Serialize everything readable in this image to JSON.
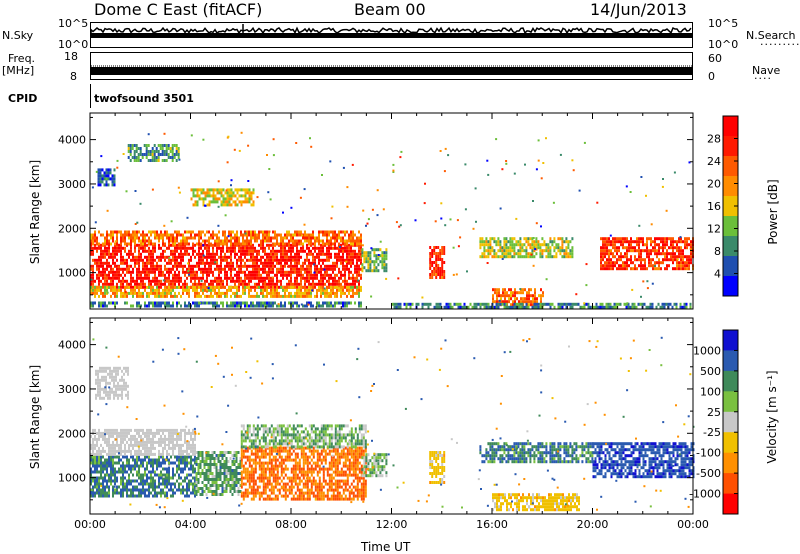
{
  "header": {
    "station": "Dome C East (fitACF)",
    "beam": "Beam 00",
    "date": "14/Jun/2013"
  },
  "strip_panels": {
    "nsky_label": "N.Sky",
    "nsky_ticks": [
      "10^5",
      "10^0"
    ],
    "nsearch_label": "N.Search",
    "nsearch_ticks": [
      "10^5",
      "10^0"
    ],
    "freq_label": "Freq.",
    "freq_unit": "[MHz]",
    "freq_ticks": [
      "18",
      "8"
    ],
    "nave_label": "Nave",
    "nave_ticks": [
      "60",
      "0"
    ],
    "cpid_label": "CPID",
    "cpid_value": "twofsound 3501"
  },
  "colors": {
    "power_scale": [
      "#0000ff",
      "#1f4fb0",
      "#3a8a6a",
      "#6bbf3a",
      "#f0c000",
      "#ff8c00",
      "#ff5a00",
      "#ff1a00",
      "#ff0000"
    ],
    "velocity_scale": [
      "#1010d0",
      "#2a5ab0",
      "#3f8a5a",
      "#7ac040",
      "#c8c8c8",
      "#f0c000",
      "#ff9000",
      "#ff5000",
      "#ff0000"
    ]
  },
  "chart_data": [
    {
      "type": "heatmap",
      "name": "power",
      "xlabel": "Time UT",
      "ylabel": "Slant Range [km]",
      "xlim": [
        0,
        24
      ],
      "ylim": [
        180,
        4600
      ],
      "x_ticks": [
        "00:00",
        "04:00",
        "08:00",
        "12:00",
        "16:00",
        "20:00",
        "00:00"
      ],
      "y_ticks": [
        "1000",
        "2000",
        "3000",
        "4000"
      ],
      "colorbar_label": "Power [dB]",
      "colorbar_ticks": [
        "4",
        "8",
        "12",
        "16",
        "20",
        "24",
        "28"
      ],
      "regions": [
        {
          "t0": 0.0,
          "t1": 10.8,
          "r0": 700,
          "r1": 1650,
          "level": 28
        },
        {
          "t0": 0.0,
          "t1": 10.8,
          "r0": 1650,
          "r1": 1950,
          "level": 22
        },
        {
          "t0": 0.0,
          "t1": 10.8,
          "r0": 450,
          "r1": 700,
          "level": 18
        },
        {
          "t0": 0.0,
          "t1": 10.8,
          "r0": 250,
          "r1": 350,
          "level": 8
        },
        {
          "t0": 0.3,
          "t1": 1.0,
          "r0": 2950,
          "r1": 3350,
          "level": 6
        },
        {
          "t0": 1.5,
          "t1": 3.5,
          "r0": 3500,
          "r1": 3900,
          "level": 10
        },
        {
          "t0": 4.0,
          "t1": 6.5,
          "r0": 2500,
          "r1": 2900,
          "level": 16
        },
        {
          "t0": 10.8,
          "t1": 11.8,
          "r0": 1050,
          "r1": 1550,
          "level": 12
        },
        {
          "t0": 13.5,
          "t1": 14.1,
          "r0": 900,
          "r1": 1600,
          "level": 26
        },
        {
          "t0": 15.5,
          "t1": 19.2,
          "r0": 1350,
          "r1": 1800,
          "level": 14
        },
        {
          "t0": 20.3,
          "t1": 24.0,
          "r0": 1100,
          "r1": 1800,
          "level": 26
        },
        {
          "t0": 16.0,
          "t1": 18.0,
          "r0": 250,
          "r1": 650,
          "level": 22
        },
        {
          "t0": 12.0,
          "t1": 24.0,
          "r0": 200,
          "r1": 320,
          "level": 8
        }
      ]
    },
    {
      "type": "heatmap",
      "name": "velocity",
      "xlabel": "Time UT",
      "ylabel": "Slant Range [km]",
      "xlim": [
        0,
        24
      ],
      "ylim": [
        180,
        4600
      ],
      "x_ticks": [
        "00:00",
        "04:00",
        "08:00",
        "12:00",
        "16:00",
        "20:00",
        "00:00"
      ],
      "y_ticks": [
        "1000",
        "2000",
        "3000",
        "4000"
      ],
      "colorbar_label": "Velocity [m s⁻¹]",
      "colorbar_ticks": [
        "1000",
        "500",
        "100",
        "25",
        "-25",
        "-100",
        "-500",
        "-1000"
      ],
      "regions": [
        {
          "t0": 0.0,
          "t1": 4.2,
          "r0": 600,
          "r1": 1500,
          "level": 100
        },
        {
          "t0": 0.0,
          "t1": 4.2,
          "r0": 1500,
          "r1": 2100,
          "level": 0
        },
        {
          "t0": 4.2,
          "t1": 6.0,
          "r0": 600,
          "r1": 1600,
          "level": 60
        },
        {
          "t0": 6.0,
          "t1": 11.0,
          "r0": 500,
          "r1": 1700,
          "level": -300
        },
        {
          "t0": 6.0,
          "t1": 11.0,
          "r0": 1700,
          "r1": 2200,
          "level": 40
        },
        {
          "t0": 0.2,
          "t1": 1.5,
          "r0": 2800,
          "r1": 3500,
          "level": 0
        },
        {
          "t0": 10.8,
          "t1": 11.8,
          "r0": 1050,
          "r1": 1550,
          "level": 40
        },
        {
          "t0": 13.5,
          "t1": 14.1,
          "r0": 900,
          "r1": 1600,
          "level": -60
        },
        {
          "t0": 15.5,
          "t1": 20.0,
          "r0": 1350,
          "r1": 1800,
          "level": 100
        },
        {
          "t0": 20.0,
          "t1": 24.0,
          "r0": 1000,
          "r1": 1800,
          "level": 400
        },
        {
          "t0": 16.0,
          "t1": 19.5,
          "r0": 250,
          "r1": 650,
          "level": -60
        }
      ]
    }
  ]
}
